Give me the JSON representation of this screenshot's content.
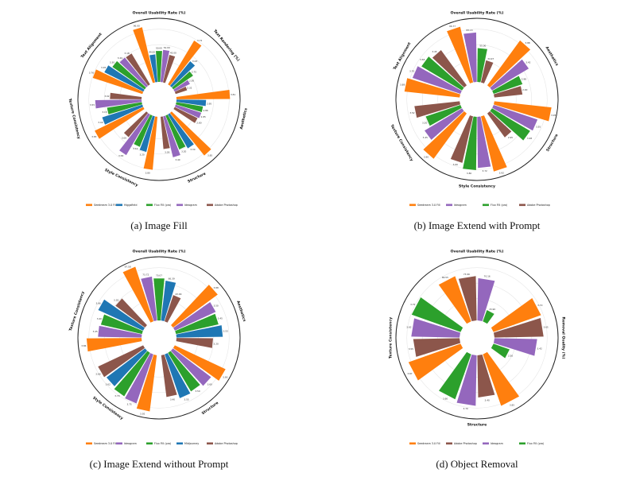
{
  "colors": {
    "orange": "#ff7f0e",
    "blue": "#1f77b4",
    "green": "#2ca02c",
    "purple": "#9467bd",
    "brown": "#8c564b"
  },
  "chart_data": [
    {
      "type": "radial-bar",
      "caption": "(a) Image Fill",
      "series": [
        {
          "name": "Seedream 3.0 Fill",
          "color": "#ff7f0e"
        },
        {
          "name": "Higgsfield",
          "color": "#1f77b4"
        },
        {
          "name": "Flux Fill (pro)",
          "color": "#2ca02c"
        },
        {
          "name": "Ideogram",
          "color": "#9467bd"
        },
        {
          "name": "Adobe Photoshop",
          "color": "#8c564b"
        }
      ],
      "categories": [
        {
          "label": "Overall Usability Rate (%)",
          "values": [
            96.0,
            44.0,
            50.0,
            52.0,
            45.0
          ]
        },
        {
          "label": "Text Rendering (%)",
          "values": [
            3.72,
            3.03,
            2.75,
            2.5,
            2.32
          ]
        },
        {
          "label": "Aesthetics",
          "values": [
            3.81,
            2.95,
            2.86,
            2.85,
            2.8
          ]
        },
        {
          "label": "Structure",
          "values": [
            3.85,
            3.3,
            3.2,
            3.4,
            3.05
          ]
        },
        {
          "label": "Style Consistency",
          "values": [
            3.8,
            3.2,
            3.1,
            3.58,
            3.0
          ]
        },
        {
          "label": "Texture Consistency",
          "values": [
            3.83,
            3.4,
            3.15,
            3.55,
            3.02
          ]
        },
        {
          "label": "Text Alignment",
          "values": [
            3.76,
            3.45,
            3.3,
            3.2,
            3.18
          ]
        }
      ]
    },
    {
      "type": "radial-bar",
      "caption": "(b) Image Extend with Prompt",
      "series": [
        {
          "name": "Seedream 3.0 Fill",
          "color": "#ff7f0e"
        },
        {
          "name": "Ideogram",
          "color": "#9467bd"
        },
        {
          "name": "Flux Fill (pro)",
          "color": "#2ca02c"
        },
        {
          "name": "Adobe Photoshop",
          "color": "#8c564b"
        }
      ],
      "categories": [
        {
          "label": "Overall Usability Rate (%)",
          "values": [
            96.77,
            83.13,
            55.0,
            34.97
          ]
        },
        {
          "label": "Aesthetics",
          "values": [
            3.88,
            3.42,
            2.98,
            2.9
          ]
        },
        {
          "label": "Structure",
          "values": [
            3.95,
            3.55,
            3.48,
            2.95
          ]
        },
        {
          "label": "Style Consistency",
          "values": [
            3.92,
            3.72,
            3.8,
            3.6
          ]
        },
        {
          "label": "Texture Consistency",
          "values": [
            3.9,
            3.45,
            3.2,
            3.52
          ]
        },
        {
          "label": "Text Alignment",
          "values": [
            3.88,
            3.7,
            3.58,
            3.45
          ]
        }
      ]
    },
    {
      "type": "radial-bar",
      "caption": "(c) Image Extend without Prompt",
      "series": [
        {
          "name": "Seedream 3.0 Fill",
          "color": "#ff7f0e"
        },
        {
          "name": "Ideogram",
          "color": "#9467bd"
        },
        {
          "name": "Flux Fill (pro)",
          "color": "#2ca02c"
        },
        {
          "name": "Midjourney",
          "color": "#1f77b4"
        },
        {
          "name": "Adobe Photoshop",
          "color": "#8c564b"
        }
      ],
      "categories": [
        {
          "label": "Overall Usability Rate (%)",
          "values": [
            97.58,
            73.72,
            70.07,
            66.39,
            43.99
          ]
        },
        {
          "label": "Aesthetics",
          "values": [
            3.88,
            3.5,
            3.45,
            3.55,
            3.2
          ]
        },
        {
          "label": "Structure",
          "values": [
            3.9,
            3.6,
            3.5,
            3.55,
            3.4
          ]
        },
        {
          "label": "Style Consistency",
          "values": [
            3.92,
            3.75,
            3.7,
            3.62,
            3.68
          ]
        },
        {
          "label": "Texture Consistency",
          "values": [
            3.86,
            3.45,
            3.4,
            3.66,
            3.2
          ]
        }
      ]
    },
    {
      "type": "radial-bar",
      "caption": "(d) Object Removal",
      "series": [
        {
          "name": "Seedream 3.0 Fill",
          "color": "#ff7f0e"
        },
        {
          "name": "Adobe Photoshop",
          "color": "#8c564b"
        },
        {
          "name": "Ideogram",
          "color": "#9467bd"
        },
        {
          "name": "Flux Fill (pro)",
          "color": "#2ca02c"
        }
      ],
      "categories": [
        {
          "label": "Overall Usability Rate (%)",
          "values": [
            80.55,
            73.96,
            70.16,
            15.9
          ]
        },
        {
          "label": "Removal Quality (%)",
          "values": [
            3.7,
            3.65,
            3.42,
            2.5
          ]
        },
        {
          "label": "Structure",
          "values": [
            3.85,
            3.4,
            3.7,
            3.6
          ]
        },
        {
          "label": "Texture Consistency",
          "values": [
            3.87,
            3.55,
            3.62,
            3.75
          ]
        }
      ]
    }
  ]
}
